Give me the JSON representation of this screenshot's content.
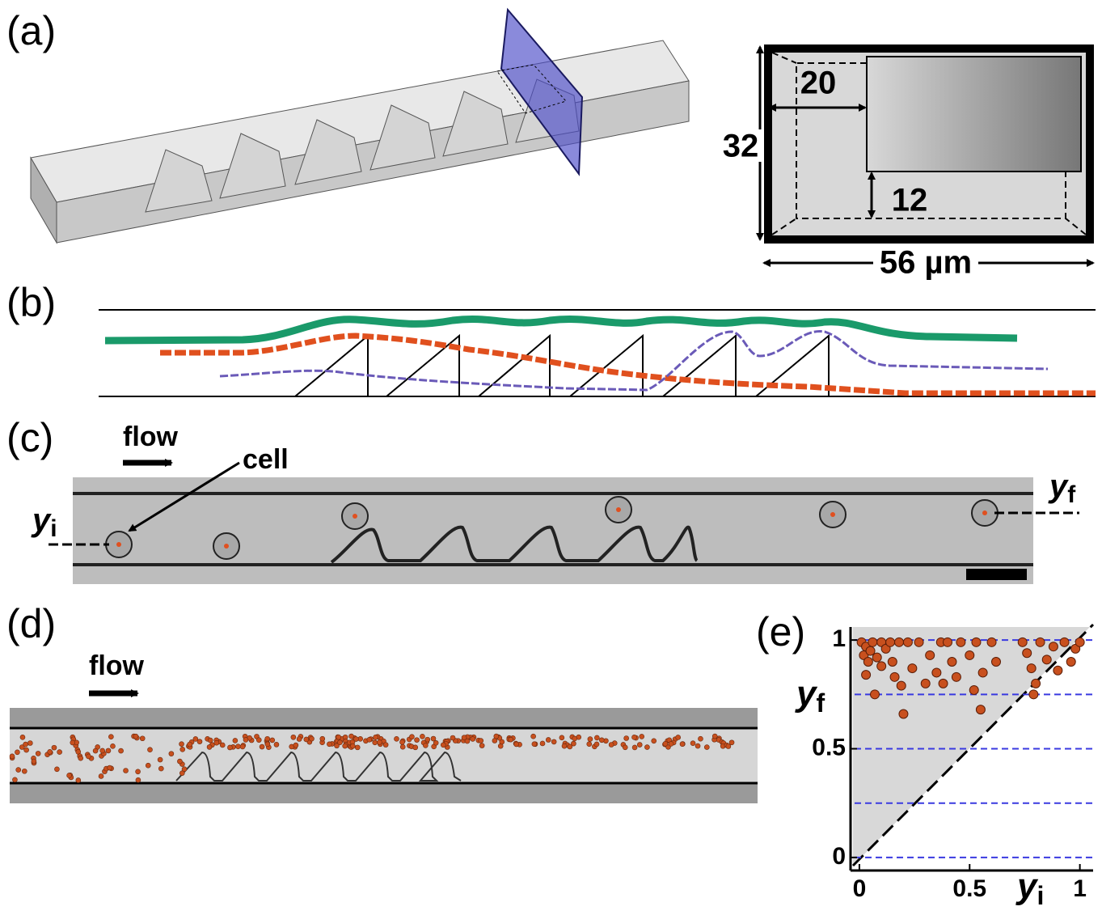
{
  "panels": {
    "a": {
      "label": "(a)",
      "dim_20": "20",
      "dim_32": "32",
      "dim_12": "12",
      "dim_56": "56 µm"
    },
    "b": {
      "label": "(b)"
    },
    "c": {
      "label": "(c)",
      "flow": "flow",
      "cell": "cell",
      "yi": {
        "symbol": "y",
        "subscript": "i"
      },
      "yf": {
        "symbol": "y",
        "subscript": "f"
      }
    },
    "d": {
      "label": "(d)",
      "flow": "flow"
    },
    "e": {
      "label": "(e)"
    }
  },
  "chart_data": {
    "type": "scatter",
    "xlabel": {
      "symbol": "y",
      "subscript": "i"
    },
    "ylabel": {
      "symbol": "y",
      "subscript": "f"
    },
    "xlim": [
      -0.04,
      1.06
    ],
    "ylim": [
      -0.06,
      1.06
    ],
    "xticks": [
      0,
      0.5,
      1
    ],
    "yticks": [
      0,
      0.5,
      1
    ],
    "guide_lines": [
      0,
      0.25,
      0.5,
      0.75,
      1
    ],
    "guide_color": "#3a3ae0",
    "color": "#c8501e",
    "x": [
      0.01,
      0.03,
      0.02,
      0.04,
      0.05,
      0.06,
      0.08,
      0.1,
      0.1,
      0.12,
      0.14,
      0.15,
      0.16,
      0.18,
      0.19,
      0.2,
      0.22,
      0.24,
      0.27,
      0.3,
      0.32,
      0.35,
      0.37,
      0.38,
      0.4,
      0.42,
      0.44,
      0.46,
      0.5,
      0.52,
      0.53,
      0.55,
      0.56,
      0.6,
      0.62,
      0.74,
      0.76,
      0.78,
      0.8,
      0.79,
      0.82,
      0.85,
      0.88,
      0.9,
      0.93,
      0.96,
      0.98,
      1.0,
      0.07,
      0.03
    ],
    "y": [
      0.99,
      0.97,
      0.93,
      0.9,
      0.95,
      0.99,
      0.92,
      0.88,
      0.99,
      0.96,
      0.99,
      0.9,
      0.83,
      0.99,
      0.79,
      0.66,
      0.99,
      0.87,
      0.99,
      0.8,
      0.93,
      0.85,
      0.99,
      0.8,
      0.99,
      0.9,
      0.83,
      0.99,
      0.93,
      0.77,
      0.99,
      0.68,
      0.85,
      0.99,
      0.9,
      0.99,
      0.94,
      0.87,
      0.8,
      0.75,
      0.99,
      0.91,
      0.97,
      0.86,
      0.99,
      0.9,
      0.96,
      0.99,
      0.75,
      0.84
    ]
  }
}
